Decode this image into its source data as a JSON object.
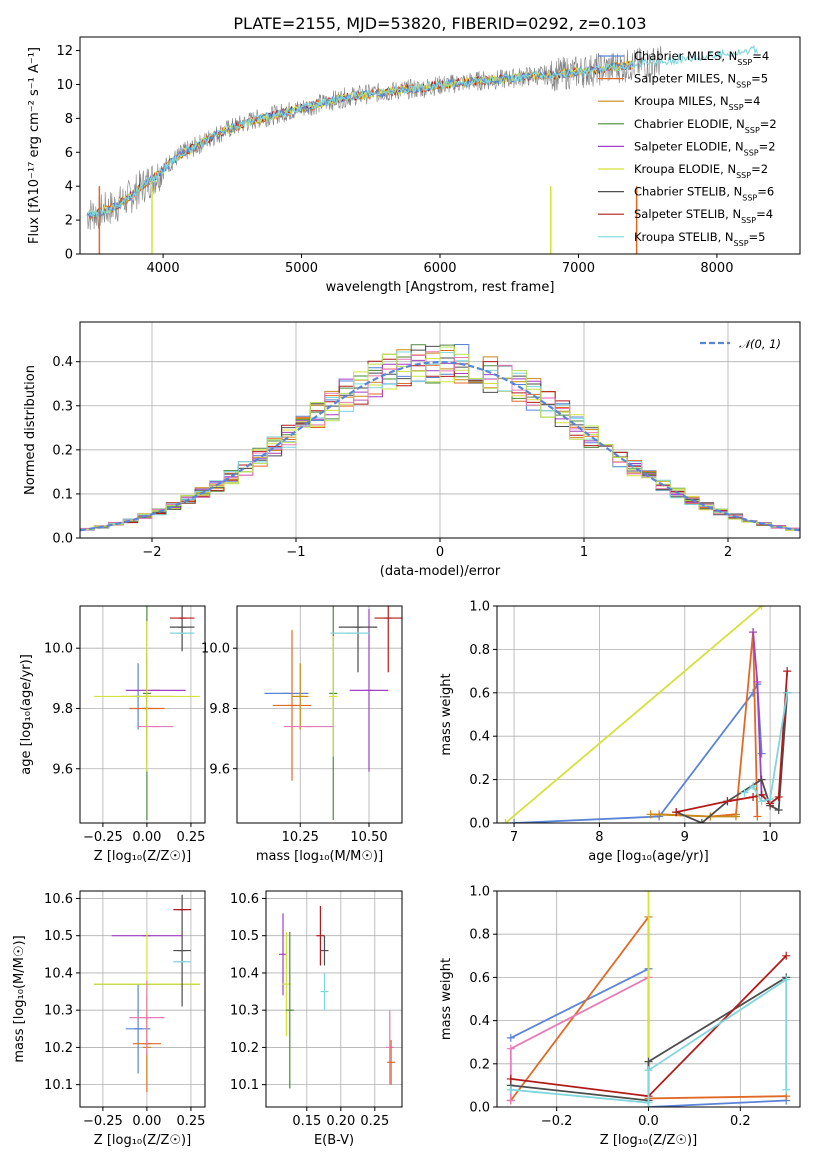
{
  "title": "PLATE=2155, MJD=53820, FIBERID=0292, z=0.103",
  "colors": {
    "Chabrier MILES": "#5a84d8",
    "Salpeter MILES": "#e06a25",
    "Kroupa MILES": "#c68a18",
    "Chabrier ELODIE": "#4a8a3a",
    "Salpeter ELODIE": "#a33fc4",
    "Kroupa ELODIE": "#d4e23a",
    "Chabrier STELIB": "#4d4d4d",
    "Salpeter STELIB": "#b31b1b",
    "Kroupa STELIB": "#7fd6dc",
    "data": "#808080",
    "pink": "#e87ab8",
    "green2": "#b8e05a"
  },
  "spectrum": {
    "xlabel": "wavelength [Angstrom, rest frame]",
    "ylabel": "Flux [fλ10⁻¹⁷ erg cm⁻² s⁻¹ A⁻¹]",
    "legend": [
      {
        "model": "Chabrier MILES",
        "label": "Chabrier MILES, N",
        "sub": "SSP",
        "suffix": "=4"
      },
      {
        "model": "Salpeter MILES",
        "label": "Salpeter MILES, N",
        "sub": "SSP",
        "suffix": "=5"
      },
      {
        "model": "Kroupa MILES",
        "label": "Kroupa MILES, N",
        "sub": "SSP",
        "suffix": "=4"
      },
      {
        "model": "Chabrier ELODIE",
        "label": "Chabrier ELODIE, N",
        "sub": "SSP",
        "suffix": "=2"
      },
      {
        "model": "Salpeter ELODIE",
        "label": "Salpeter ELODIE, N",
        "sub": "SSP",
        "suffix": "=2"
      },
      {
        "model": "Kroupa ELODIE",
        "label": "Kroupa ELODIE, N",
        "sub": "SSP",
        "suffix": "=2"
      },
      {
        "model": "Chabrier STELIB",
        "label": "Chabrier STELIB, N",
        "sub": "SSP",
        "suffix": "=6"
      },
      {
        "model": "Salpeter STELIB",
        "label": "Salpeter STELIB, N",
        "sub": "SSP",
        "suffix": "=4"
      },
      {
        "model": "Kroupa STELIB",
        "label": "Kroupa STELIB, N",
        "sub": "SSP",
        "suffix": "=5"
      }
    ]
  },
  "residual": {
    "xlabel": "(data-model)/error",
    "ylabel": "Normed distribution",
    "legend_label": "𝒩(0, 1)"
  },
  "age_z": {
    "xlabel": "Z [log₁₀(Z/Z☉)]",
    "ylabel": "age  [log₁₀(age/yr)]"
  },
  "age_mass": {
    "xlabel": "mass [log₁₀(M/M☉)]"
  },
  "mw_age": {
    "xlabel": "age  [log₁₀(age/yr)]",
    "ylabel": "mass weight"
  },
  "mass_z": {
    "xlabel": "Z [log₁₀(Z/Z☉)]",
    "ylabel": "mass [log₁₀(M/M☉)]"
  },
  "mass_ebv": {
    "xlabel": "E(B-V)"
  },
  "mw_z": {
    "xlabel": "Z [log₁₀(Z/Z☉)]",
    "ylabel": "mass weight"
  },
  "chart_data": [
    {
      "type": "line",
      "title": "PLATE=2155, MJD=53820, FIBERID=0292, z=0.103",
      "xlabel": "wavelength [Angstrom, rest frame]",
      "ylabel": "Flux [fλ10⁻¹⁷ erg cm⁻² s⁻¹ A⁻¹]",
      "xlim": [
        3400,
        8600
      ],
      "ylim": [
        0,
        12.8
      ],
      "xticks": [
        4000,
        5000,
        6000,
        7000,
        8000
      ],
      "yticks": [
        0,
        2,
        4,
        6,
        8,
        10,
        12
      ],
      "legend_position": "upper-right",
      "series_model_x": [
        3450,
        3550,
        3650,
        3750,
        3850,
        3950,
        4050,
        4150,
        4250,
        4350,
        4450,
        4550,
        4650,
        4750,
        4850,
        4950,
        5050,
        5150,
        5250,
        5350,
        5450,
        5550,
        5650,
        5750,
        5850,
        5950,
        6050,
        6150,
        6250,
        6350,
        6450,
        6550,
        6650,
        6750,
        6850,
        6950,
        7050,
        7150,
        7250,
        7350,
        7450,
        7550,
        7650,
        7750,
        7850,
        7950,
        8050,
        8150,
        8250,
        8350
      ],
      "series_model_y": [
        2.3,
        2.5,
        2.8,
        3.3,
        4.0,
        4.6,
        5.4,
        6.0,
        6.4,
        6.9,
        7.3,
        7.6,
        7.9,
        8.1,
        8.3,
        8.5,
        8.7,
        8.9,
        9.1,
        9.3,
        9.4,
        9.5,
        9.6,
        9.7,
        9.75,
        9.9,
        10.0,
        10.1,
        10.2,
        10.25,
        10.3,
        10.4,
        10.5,
        10.55,
        10.6,
        10.7,
        10.8,
        10.9,
        11.0,
        11.1,
        11.2,
        11.3,
        11.4,
        11.5,
        11.6,
        11.7,
        11.8,
        11.9,
        12.0,
        12.1
      ]
    },
    {
      "type": "bar",
      "title": "",
      "xlabel": "(data-model)/error",
      "ylabel": "Normed distribution",
      "xlim": [
        -2.5,
        2.5
      ],
      "ylim": [
        0,
        0.49
      ],
      "xticks": [
        -2,
        -1,
        0,
        1,
        2
      ],
      "yticks": [
        0.0,
        0.1,
        0.2,
        0.3,
        0.4
      ],
      "legend_position": "upper-right",
      "series": [
        {
          "name": "𝒩(0, 1)",
          "x_mu": 0,
          "sigma": 1
        }
      ]
    },
    {
      "type": "scatter",
      "xlabel": "Z [log₁₀(Z/Z☉)]",
      "ylabel": "age  [log₁₀(age/yr)]",
      "xlim": [
        -0.38,
        0.33
      ],
      "ylim": [
        9.42,
        10.14
      ],
      "xticks": [
        -0.25,
        0.0,
        0.25
      ],
      "yticks": [
        9.6,
        9.8,
        10.0
      ],
      "points": [
        {
          "model": "Chabrier MILES",
          "x": -0.05,
          "y": 9.84,
          "ex": 0.0,
          "ey": 0.11
        },
        {
          "model": "Salpeter MILES",
          "x": 0.0,
          "y": 9.8,
          "ex": 0.1,
          "ey": 0.18
        },
        {
          "model": "Kroupa MILES",
          "x": 0.0,
          "y": 9.84,
          "ex": 0.15,
          "ey": 0.12
        },
        {
          "model": "Chabrier ELODIE",
          "x": 0.0,
          "y": 9.85,
          "ex": 0.0,
          "ey": 0.42
        },
        {
          "model": "Salpeter ELODIE",
          "x": 0.05,
          "y": 9.86,
          "ex": 0.17,
          "ey": 0.0
        },
        {
          "model": "Kroupa ELODIE",
          "x": 0.0,
          "y": 9.84,
          "ex": 0.3,
          "ey": 0.25
        },
        {
          "model": "Chabrier STELIB",
          "x": 0.2,
          "y": 10.07,
          "ex": 0.07,
          "ey": 0.08
        },
        {
          "model": "Salpeter STELIB",
          "x": 0.2,
          "y": 10.1,
          "ex": 0.07,
          "ey": 0.0
        },
        {
          "model": "Kroupa STELIB",
          "x": 0.2,
          "y": 10.05,
          "ex": 0.07,
          "ey": 0.0
        },
        {
          "model": "pink",
          "x": 0.05,
          "y": 9.74,
          "ex": 0.1,
          "ey": 0.0
        }
      ]
    },
    {
      "type": "scatter",
      "xlabel": "mass [log₁₀(M/M☉)]",
      "ylabel": "",
      "xlim": [
        10.02,
        10.62
      ],
      "ylim": [
        9.42,
        10.14
      ],
      "xticks": [
        10.25,
        10.5
      ],
      "yticks": [
        9.6,
        9.8,
        10.0
      ],
      "points": [
        {
          "model": "Chabrier MILES",
          "x": 10.2,
          "y": 9.85,
          "ex": 0.08,
          "ey": 0.0
        },
        {
          "model": "Salpeter MILES",
          "x": 10.22,
          "y": 9.81,
          "ex": 0.07,
          "ey": 0.25
        },
        {
          "model": "Kroupa MILES",
          "x": 10.25,
          "y": 9.84,
          "ex": 0.03,
          "ey": 0.11
        },
        {
          "model": "Chabrier ELODIE",
          "x": 10.37,
          "y": 9.85,
          "ex": 0.0,
          "ey": 0.42
        },
        {
          "model": "Salpeter ELODIE",
          "x": 10.5,
          "y": 9.86,
          "ex": 0.07,
          "ey": 0.27
        },
        {
          "model": "Kroupa ELODIE",
          "x": 10.37,
          "y": 9.84,
          "ex": 0.0,
          "ey": 0.2
        },
        {
          "model": "Chabrier STELIB",
          "x": 10.46,
          "y": 10.07,
          "ex": 0.07,
          "ey": 0.15
        },
        {
          "model": "Salpeter STELIB",
          "x": 10.57,
          "y": 10.1,
          "ex": 0.05,
          "ey": 0.18
        },
        {
          "model": "Kroupa STELIB",
          "x": 10.43,
          "y": 10.05,
          "ex": 0.07,
          "ey": 0.0
        },
        {
          "model": "pink",
          "x": 10.28,
          "y": 9.74,
          "ex": 0.09,
          "ey": 0.0
        }
      ]
    },
    {
      "type": "line",
      "xlabel": "age  [log₁₀(age/yr)]",
      "ylabel": "mass weight",
      "xlim": [
        6.8,
        10.35
      ],
      "ylim": [
        0,
        1.0
      ],
      "xticks": [
        7,
        8,
        9,
        10
      ],
      "yticks": [
        0.0,
        0.2,
        0.4,
        0.6,
        0.8,
        1.0
      ],
      "series": [
        {
          "model": "Chabrier MILES",
          "x": [
            7.0,
            8.7,
            9.8,
            9.85,
            9.9
          ],
          "y": [
            0.0,
            0.03,
            0.6,
            0.64,
            0.32
          ]
        },
        {
          "model": "Salpeter MILES",
          "x": [
            8.7,
            9.3,
            9.6,
            9.8,
            9.85
          ],
          "y": [
            0.04,
            0.03,
            0.04,
            0.88,
            0.03
          ]
        },
        {
          "model": "Kroupa MILES",
          "x": [
            8.6,
            9.3,
            9.6
          ],
          "y": [
            0.04,
            0.03,
            0.03
          ]
        },
        {
          "model": "Kroupa ELODIE",
          "x": [
            6.9,
            9.9
          ],
          "y": [
            0.0,
            1.0
          ]
        },
        {
          "model": "Salpeter ELODIE",
          "x": [
            9.8,
            9.85,
            9.9
          ],
          "y": [
            0.88,
            0.65,
            0.13
          ]
        },
        {
          "model": "Chabrier STELIB",
          "x": [
            8.9,
            9.2,
            9.5,
            9.9,
            10.0,
            10.1,
            10.2
          ],
          "y": [
            0.05,
            0.0,
            0.1,
            0.2,
            0.08,
            0.06,
            0.6
          ]
        },
        {
          "model": "Salpeter STELIB",
          "x": [
            8.9,
            9.5,
            9.8,
            9.9,
            10.0,
            10.1,
            10.2
          ],
          "y": [
            0.05,
            0.1,
            0.12,
            0.13,
            0.09,
            0.12,
            0.7
          ]
        },
        {
          "model": "Kroupa STELIB",
          "x": [
            9.7,
            9.8,
            9.9,
            10.0,
            10.2
          ],
          "y": [
            0.14,
            0.17,
            0.1,
            0.11,
            0.6
          ]
        }
      ]
    },
    {
      "type": "scatter",
      "xlabel": "Z [log₁₀(Z/Z☉)]",
      "ylabel": "mass [log₁₀(M/M☉)]",
      "xlim": [
        -0.38,
        0.33
      ],
      "ylim": [
        10.04,
        10.62
      ],
      "xticks": [
        -0.25,
        0.0,
        0.25
      ],
      "yticks": [
        10.1,
        10.2,
        10.3,
        10.4,
        10.5,
        10.6
      ],
      "points": [
        {
          "model": "Chabrier MILES",
          "x": -0.05,
          "y": 10.25,
          "ex": 0.07,
          "ey": 0.12
        },
        {
          "model": "Salpeter MILES",
          "x": 0.0,
          "y": 10.21,
          "ex": 0.08,
          "ey": 0.13
        },
        {
          "model": "Kroupa MILES",
          "x": 0.0,
          "y": 10.2,
          "ex": 0.0,
          "ey": 0.09
        },
        {
          "model": "Chabrier ELODIE",
          "x": 0.0,
          "y": 10.37,
          "ex": 0.3,
          "ey": 0.0
        },
        {
          "model": "Salpeter ELODIE",
          "x": 0.0,
          "y": 10.5,
          "ex": 0.2,
          "ey": 0.0
        },
        {
          "model": "Kroupa ELODIE",
          "x": 0.0,
          "y": 10.37,
          "ex": 0.3,
          "ey": 0.14
        },
        {
          "model": "Chabrier STELIB",
          "x": 0.2,
          "y": 10.46,
          "ex": 0.05,
          "ey": 0.15
        },
        {
          "model": "Salpeter STELIB",
          "x": 0.2,
          "y": 10.57,
          "ex": 0.05,
          "ey": 0.0
        },
        {
          "model": "Kroupa STELIB",
          "x": 0.2,
          "y": 10.43,
          "ex": 0.05,
          "ey": 0.0
        },
        {
          "model": "pink",
          "x": 0.0,
          "y": 10.28,
          "ex": 0.1,
          "ey": 0.1
        }
      ]
    },
    {
      "type": "scatter",
      "xlabel": "E(B-V)",
      "ylabel": "",
      "xlim": [
        0.09,
        0.29
      ],
      "ylim": [
        10.04,
        10.62
      ],
      "xticks": [
        0.15,
        0.2,
        0.25
      ],
      "yticks": [
        10.1,
        10.2,
        10.3,
        10.4,
        10.5,
        10.6
      ],
      "points": [
        {
          "model": "Salpeter ELODIE",
          "x": 0.115,
          "y": 10.45,
          "ey": 0.11
        },
        {
          "model": "Kroupa ELODIE",
          "x": 0.12,
          "y": 10.37,
          "ey": 0.14
        },
        {
          "model": "Chabrier ELODIE",
          "x": 0.125,
          "y": 10.3,
          "ey": 0.21
        },
        {
          "model": "Salpeter STELIB",
          "x": 0.17,
          "y": 10.5,
          "ey": 0.08
        },
        {
          "model": "Chabrier STELIB",
          "x": 0.176,
          "y": 10.46,
          "ey": 0.04
        },
        {
          "model": "Kroupa STELIB",
          "x": 0.176,
          "y": 10.35,
          "ey": 0.05
        },
        {
          "model": "pink",
          "x": 0.272,
          "y": 10.2,
          "ey": 0.1
        },
        {
          "model": "Salpeter MILES",
          "x": 0.274,
          "y": 10.16,
          "ey": 0.06
        }
      ]
    },
    {
      "type": "line",
      "xlabel": "Z [log₁₀(Z/Z☉)]",
      "ylabel": "mass weight",
      "xlim": [
        -0.33,
        0.33
      ],
      "ylim": [
        0,
        1.0
      ],
      "xticks": [
        -0.2,
        0.0,
        0.2
      ],
      "yticks": [
        0.0,
        0.2,
        0.4,
        0.6,
        0.8,
        1.0
      ],
      "series": [
        {
          "model": "Chabrier MILES",
          "x": [
            -0.3,
            0.0,
            0.0,
            0.3
          ],
          "y": [
            0.32,
            0.64,
            0.0,
            0.03
          ]
        },
        {
          "model": "Salpeter MILES",
          "x": [
            -0.3,
            0.0,
            0.0,
            0.3
          ],
          "y": [
            0.03,
            0.88,
            0.04,
            0.05
          ]
        },
        {
          "model": "pink",
          "x": [
            -0.3,
            -0.3,
            0.0
          ],
          "y": [
            0.03,
            0.27,
            0.6
          ]
        },
        {
          "model": "Kroupa ELODIE",
          "x": [
            0.0,
            0.0
          ],
          "y": [
            0.0,
            1.0
          ]
        },
        {
          "model": "Chabrier STELIB",
          "x": [
            -0.3,
            0.0,
            0.0,
            0.3
          ],
          "y": [
            0.1,
            0.03,
            0.21,
            0.6
          ]
        },
        {
          "model": "Salpeter STELIB",
          "x": [
            -0.3,
            0.0,
            0.3
          ],
          "y": [
            0.13,
            0.05,
            0.7
          ]
        },
        {
          "model": "Kroupa STELIB",
          "x": [
            -0.3,
            0.0,
            0.0,
            0.3,
            0.3
          ],
          "y": [
            0.08,
            0.02,
            0.17,
            0.59,
            0.08
          ]
        }
      ]
    }
  ]
}
